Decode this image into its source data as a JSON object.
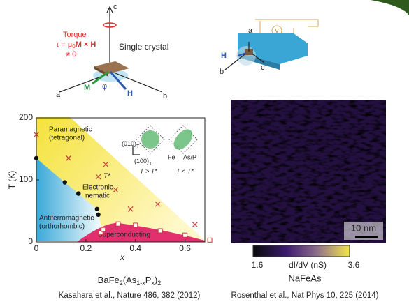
{
  "torque_diagram": {
    "axis_c": "c",
    "axis_a": "a",
    "axis_b": "b",
    "torque": "Torque",
    "formula": {
      "tau": "τ = μ",
      "sub": "0",
      "rest": "M × H"
    },
    "nonzero": "≠ 0",
    "crystal": "Single crystal",
    "m": "M",
    "phi": "φ",
    "h": "H"
  },
  "device_diagram": {
    "a": "a",
    "b": "b",
    "c": "c",
    "h": "H",
    "v": "V"
  },
  "chart_data": {
    "type": "scatter",
    "xlabel": "x",
    "ylabel": "T (K)",
    "xlim": [
      0,
      0.68
    ],
    "ylim": [
      0,
      200
    ],
    "xticks": [
      0,
      0.2,
      0.4,
      0.6
    ],
    "yticks": [
      0,
      100,
      200
    ],
    "series": [
      {
        "color": "#111111",
        "marker": "dot",
        "x": [
          0,
          0.115,
          0.17,
          0.245,
          0.25
        ],
        "values": [
          135,
          96,
          78,
          53,
          44
        ]
      },
      {
        "color": "#c83c3c",
        "marker": "cross",
        "x": [
          0,
          0.13,
          0.25,
          0.28,
          0.32,
          0.38,
          0.49,
          0.64
        ],
        "values": [
          173,
          135,
          105,
          125,
          84,
          53,
          61,
          28
        ]
      },
      {
        "color": "#c83c3c",
        "marker": "square",
        "x": [
          0.26,
          0.27,
          0.33,
          0.4,
          0.5,
          0.6,
          0.7
        ],
        "values": [
          15,
          20,
          29,
          27,
          18,
          11,
          3
        ]
      }
    ],
    "annotations": {
      "para1": "Paramagnetic",
      "para2": "(tetragonal)",
      "tstar": "T*",
      "nem1": "Electronic",
      "nem2": "nematic",
      "afm1": "Antiferromagnetic",
      "afm2": "(orthorhombic)",
      "sc": "Superconducting"
    },
    "inset": {
      "dir1": "(010)",
      "dir2": "(100)",
      "sub": "T",
      "left": "T > T*",
      "right": "T < T*",
      "fe": "Fe",
      "as": "As/P"
    }
  },
  "stm": {
    "scale_bar": "10 nm",
    "colorbar": {
      "ticks": [
        1.6,
        3.6
      ],
      "label": "dI/dV (nS)"
    }
  },
  "captions": {
    "left_formula": [
      "BaFe",
      "2",
      "(As",
      "1-x",
      "P",
      "x",
      ")",
      "2"
    ],
    "left_citation": "Kasahara et al., Nature 486, 382 (2012)",
    "right_title": "NaFeAs",
    "right_citation": "Rosenthal et al., Nat Phys 10, 225 (2014)"
  }
}
